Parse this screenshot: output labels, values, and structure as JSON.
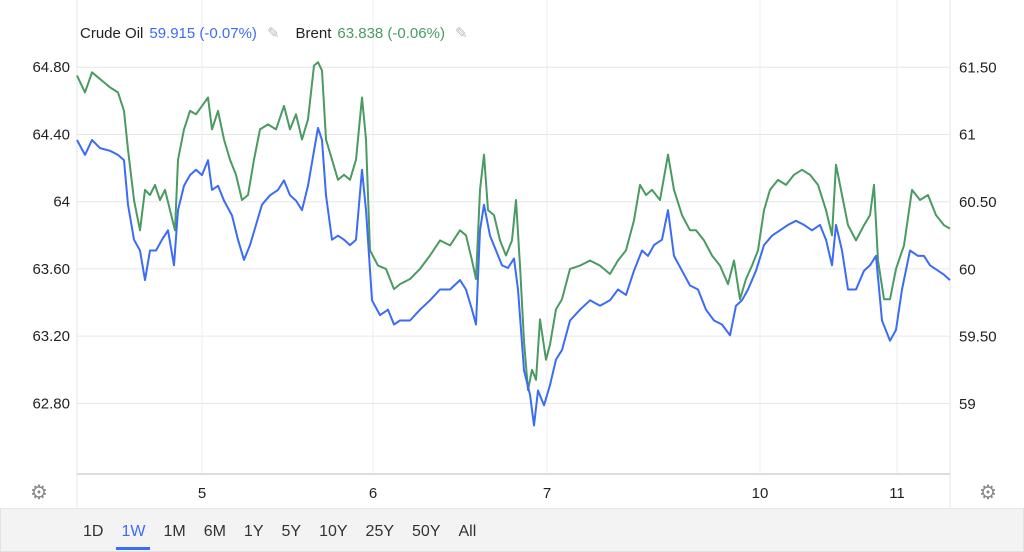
{
  "legend": {
    "series1_name": "Crude Oil",
    "series1_value": "59.915 (-0.07%)",
    "series2_name": "Brent",
    "series2_value": "63.838 (-0.06%)"
  },
  "range_buttons": [
    "1D",
    "1W",
    "1M",
    "6M",
    "1Y",
    "5Y",
    "10Y",
    "25Y",
    "50Y",
    "All"
  ],
  "active_range": "1W",
  "icons": {
    "edit": "pencil-icon",
    "settings": "gear-icon"
  },
  "colors": {
    "crude": "#3b6cf5",
    "brent": "#4a9a62",
    "grid": "#e6e6e6"
  },
  "chart_data": {
    "type": "line",
    "title": "",
    "xlabel": "",
    "x_range": [
      0,
      218.25
    ],
    "x_ticks": [
      {
        "x": 31.25,
        "label": "5"
      },
      {
        "x": 74,
        "label": "6"
      },
      {
        "x": 117.5,
        "label": "7"
      },
      {
        "x": 170.75,
        "label": "10"
      },
      {
        "x": 205,
        "label": "11"
      }
    ],
    "left_axis": {
      "ylim": [
        62.38,
        65.2
      ],
      "ticks": [
        {
          "v": 64.8,
          "label": "64.80"
        },
        {
          "v": 64.4,
          "label": "64.40"
        },
        {
          "v": 64.0,
          "label": "64"
        },
        {
          "v": 63.6,
          "label": "63.60"
        },
        {
          "v": 63.2,
          "label": "63.20"
        },
        {
          "v": 62.8,
          "label": "62.80"
        }
      ]
    },
    "right_axis": {
      "ylim": [
        58.48,
        62.0
      ],
      "ticks": [
        {
          "v": 61.5,
          "label": "61.50"
        },
        {
          "v": 61.0,
          "label": "61"
        },
        {
          "v": 60.5,
          "label": "60.50"
        },
        {
          "v": 60.0,
          "label": "60"
        },
        {
          "v": 59.5,
          "label": "59.50"
        },
        {
          "v": 59.0,
          "label": "59"
        }
      ]
    },
    "grid": true,
    "legend_position": "top-left",
    "series": [
      {
        "name": "Brent",
        "axis": "left",
        "color": "#4a9a62",
        "points": [
          [
            0,
            64.75
          ],
          [
            2,
            64.65
          ],
          [
            3.75,
            64.77
          ],
          [
            5.75,
            64.73
          ],
          [
            8.25,
            64.68
          ],
          [
            10.25,
            64.65
          ],
          [
            11.75,
            64.54
          ],
          [
            12.75,
            64.31
          ],
          [
            14.25,
            64.01
          ],
          [
            15.75,
            63.83
          ],
          [
            17,
            64.07
          ],
          [
            18.25,
            64.04
          ],
          [
            19.5,
            64.1
          ],
          [
            20.75,
            64.01
          ],
          [
            22,
            64.07
          ],
          [
            23.25,
            63.95
          ],
          [
            24.5,
            63.83
          ],
          [
            25.25,
            64.25
          ],
          [
            26.75,
            64.43
          ],
          [
            28.25,
            64.54
          ],
          [
            29.75,
            64.52
          ],
          [
            31.25,
            64.57
          ],
          [
            32.75,
            64.62
          ],
          [
            33.75,
            64.43
          ],
          [
            35.25,
            64.54
          ],
          [
            36.75,
            64.37
          ],
          [
            38.25,
            64.25
          ],
          [
            39.75,
            64.16
          ],
          [
            41.25,
            64.01
          ],
          [
            42.75,
            64.04
          ],
          [
            44.25,
            64.25
          ],
          [
            45.75,
            64.43
          ],
          [
            47.75,
            64.46
          ],
          [
            49.75,
            64.43
          ],
          [
            51.75,
            64.57
          ],
          [
            53.25,
            64.43
          ],
          [
            54.75,
            64.52
          ],
          [
            56.25,
            64.37
          ],
          [
            57.75,
            64.49
          ],
          [
            59.25,
            64.81
          ],
          [
            60.25,
            64.83
          ],
          [
            61.25,
            64.78
          ],
          [
            62.25,
            64.37
          ],
          [
            63.75,
            64.25
          ],
          [
            65.25,
            64.13
          ],
          [
            66.75,
            64.16
          ],
          [
            68.25,
            64.13
          ],
          [
            69.75,
            64.25
          ],
          [
            71.25,
            64.62
          ],
          [
            72.25,
            64.37
          ],
          [
            73.25,
            63.71
          ],
          [
            75.25,
            63.62
          ],
          [
            77.25,
            63.6
          ],
          [
            79.25,
            63.48
          ],
          [
            80.75,
            63.51
          ],
          [
            83.25,
            63.54
          ],
          [
            85.75,
            63.6
          ],
          [
            88.25,
            63.68
          ],
          [
            90.75,
            63.77
          ],
          [
            93.25,
            63.74
          ],
          [
            95.75,
            63.83
          ],
          [
            97.25,
            63.8
          ],
          [
            98.75,
            63.65
          ],
          [
            99.75,
            63.54
          ],
          [
            100.75,
            64.07
          ],
          [
            101.75,
            64.28
          ],
          [
            102.75,
            63.95
          ],
          [
            104.25,
            63.92
          ],
          [
            105.75,
            63.77
          ],
          [
            107.25,
            63.68
          ],
          [
            108.75,
            63.77
          ],
          [
            109.75,
            64.01
          ],
          [
            110.75,
            63.62
          ],
          [
            111.75,
            63.17
          ],
          [
            112.75,
            62.88
          ],
          [
            113.75,
            63.0
          ],
          [
            114.75,
            62.94
          ],
          [
            115.75,
            63.3
          ],
          [
            117.25,
            63.06
          ],
          [
            118.25,
            63.15
          ],
          [
            119.75,
            63.36
          ],
          [
            121.25,
            63.42
          ],
          [
            123.25,
            63.6
          ],
          [
            125.75,
            63.62
          ],
          [
            128.25,
            63.65
          ],
          [
            130.75,
            63.62
          ],
          [
            133.25,
            63.57
          ],
          [
            135.25,
            63.65
          ],
          [
            137.25,
            63.71
          ],
          [
            139.25,
            63.89
          ],
          [
            140.75,
            64.1
          ],
          [
            142.25,
            64.04
          ],
          [
            143.75,
            64.07
          ],
          [
            145.75,
            64.01
          ],
          [
            147.75,
            64.28
          ],
          [
            149.25,
            64.07
          ],
          [
            151.25,
            63.92
          ],
          [
            153.25,
            63.83
          ],
          [
            154.75,
            63.83
          ],
          [
            156.75,
            63.77
          ],
          [
            158.75,
            63.68
          ],
          [
            160.75,
            63.62
          ],
          [
            162.75,
            63.51
          ],
          [
            164.25,
            63.65
          ],
          [
            165.75,
            63.42
          ],
          [
            167.25,
            63.54
          ],
          [
            168.75,
            63.62
          ],
          [
            170.25,
            63.71
          ],
          [
            171.75,
            63.95
          ],
          [
            173.25,
            64.07
          ],
          [
            175.25,
            64.13
          ],
          [
            177.25,
            64.1
          ],
          [
            179.25,
            64.16
          ],
          [
            181.25,
            64.19
          ],
          [
            183.25,
            64.16
          ],
          [
            185.25,
            64.1
          ],
          [
            187.25,
            63.95
          ],
          [
            188.75,
            63.8
          ],
          [
            189.75,
            64.22
          ],
          [
            191.25,
            64.04
          ],
          [
            192.75,
            63.86
          ],
          [
            194.75,
            63.77
          ],
          [
            196.75,
            63.86
          ],
          [
            198.25,
            63.92
          ],
          [
            199.25,
            64.1
          ],
          [
            200.25,
            63.65
          ],
          [
            201.75,
            63.42
          ],
          [
            203.25,
            63.42
          ],
          [
            204.75,
            63.6
          ],
          [
            206.75,
            63.74
          ],
          [
            208.75,
            64.07
          ],
          [
            210.75,
            64.01
          ],
          [
            212.75,
            64.04
          ],
          [
            214.75,
            63.92
          ],
          [
            216.75,
            63.86
          ],
          [
            218.25,
            63.84
          ]
        ]
      },
      {
        "name": "Crude Oil",
        "axis": "right",
        "color": "#3b6cf5",
        "points": [
          [
            0,
            60.96
          ],
          [
            2,
            60.85
          ],
          [
            3.75,
            60.96
          ],
          [
            5.75,
            60.9
          ],
          [
            8.25,
            60.88
          ],
          [
            10.25,
            60.85
          ],
          [
            11.75,
            60.81
          ],
          [
            12.75,
            60.48
          ],
          [
            14.25,
            60.22
          ],
          [
            15.75,
            60.14
          ],
          [
            17,
            59.92
          ],
          [
            18.25,
            60.14
          ],
          [
            19.75,
            60.14
          ],
          [
            21.25,
            60.22
          ],
          [
            22.75,
            60.29
          ],
          [
            24.25,
            60.03
          ],
          [
            25.25,
            60.44
          ],
          [
            26.75,
            60.62
          ],
          [
            28.25,
            60.7
          ],
          [
            29.75,
            60.74
          ],
          [
            31.25,
            60.7
          ],
          [
            32.75,
            60.81
          ],
          [
            33.75,
            60.59
          ],
          [
            35.25,
            60.62
          ],
          [
            36.75,
            60.51
          ],
          [
            38.75,
            60.4
          ],
          [
            40.25,
            60.22
          ],
          [
            41.75,
            60.07
          ],
          [
            43.25,
            60.18
          ],
          [
            44.75,
            60.33
          ],
          [
            46.25,
            60.48
          ],
          [
            48.25,
            60.55
          ],
          [
            50.25,
            60.59
          ],
          [
            51.75,
            60.66
          ],
          [
            53.25,
            60.55
          ],
          [
            54.75,
            60.51
          ],
          [
            56.25,
            60.44
          ],
          [
            57.75,
            60.62
          ],
          [
            59.25,
            60.88
          ],
          [
            60.25,
            61.05
          ],
          [
            61.25,
            60.96
          ],
          [
            62.25,
            60.55
          ],
          [
            63.75,
            60.22
          ],
          [
            65.25,
            60.25
          ],
          [
            66.75,
            60.22
          ],
          [
            68.25,
            60.18
          ],
          [
            69.75,
            60.22
          ],
          [
            71.25,
            60.74
          ],
          [
            72.25,
            60.44
          ],
          [
            73.75,
            59.77
          ],
          [
            75.75,
            59.66
          ],
          [
            77.75,
            59.7
          ],
          [
            79.25,
            59.59
          ],
          [
            80.75,
            59.62
          ],
          [
            83.25,
            59.62
          ],
          [
            85.75,
            59.7
          ],
          [
            88.25,
            59.77
          ],
          [
            90.75,
            59.85
          ],
          [
            93.25,
            59.85
          ],
          [
            95.75,
            59.92
          ],
          [
            97.25,
            59.85
          ],
          [
            98.75,
            59.7
          ],
          [
            99.75,
            59.59
          ],
          [
            100.75,
            60.29
          ],
          [
            101.75,
            60.48
          ],
          [
            103.25,
            60.25
          ],
          [
            104.75,
            60.14
          ],
          [
            106.25,
            60.03
          ],
          [
            107.75,
            60.01
          ],
          [
            109.25,
            60.08
          ],
          [
            110.25,
            59.85
          ],
          [
            111.75,
            59.25
          ],
          [
            113.25,
            59.07
          ],
          [
            114.25,
            58.84
          ],
          [
            115.25,
            59.1
          ],
          [
            116.75,
            58.99
          ],
          [
            118.25,
            59.14
          ],
          [
            119.75,
            59.33
          ],
          [
            121.25,
            59.4
          ],
          [
            123.25,
            59.62
          ],
          [
            125.75,
            59.7
          ],
          [
            128.25,
            59.77
          ],
          [
            130.75,
            59.73
          ],
          [
            133.25,
            59.77
          ],
          [
            135.25,
            59.85
          ],
          [
            137.25,
            59.81
          ],
          [
            139.25,
            59.99
          ],
          [
            141.25,
            60.14
          ],
          [
            142.75,
            60.1
          ],
          [
            144.25,
            60.18
          ],
          [
            146.25,
            60.22
          ],
          [
            147.75,
            60.44
          ],
          [
            149.25,
            60.1
          ],
          [
            151.25,
            59.99
          ],
          [
            153.25,
            59.88
          ],
          [
            155.25,
            59.85
          ],
          [
            157.25,
            59.7
          ],
          [
            159.25,
            59.62
          ],
          [
            161.25,
            59.59
          ],
          [
            163.25,
            59.51
          ],
          [
            164.75,
            59.73
          ],
          [
            166.25,
            59.77
          ],
          [
            167.75,
            59.85
          ],
          [
            169.75,
            59.99
          ],
          [
            171.75,
            60.18
          ],
          [
            173.75,
            60.25
          ],
          [
            175.75,
            60.29
          ],
          [
            177.75,
            60.33
          ],
          [
            179.75,
            60.36
          ],
          [
            181.75,
            60.33
          ],
          [
            183.75,
            60.29
          ],
          [
            185.75,
            60.33
          ],
          [
            187.25,
            60.22
          ],
          [
            188.75,
            60.03
          ],
          [
            189.75,
            60.33
          ],
          [
            191.25,
            60.14
          ],
          [
            192.75,
            59.85
          ],
          [
            194.75,
            59.85
          ],
          [
            196.75,
            59.99
          ],
          [
            198.25,
            60.03
          ],
          [
            199.75,
            60.1
          ],
          [
            201.25,
            59.62
          ],
          [
            203.25,
            59.47
          ],
          [
            204.75,
            59.55
          ],
          [
            206.25,
            59.85
          ],
          [
            208.25,
            60.14
          ],
          [
            210.25,
            60.1
          ],
          [
            211.75,
            60.1
          ],
          [
            213.25,
            60.03
          ],
          [
            215.25,
            59.99
          ],
          [
            216.75,
            59.96
          ],
          [
            218.25,
            59.92
          ]
        ]
      }
    ]
  }
}
